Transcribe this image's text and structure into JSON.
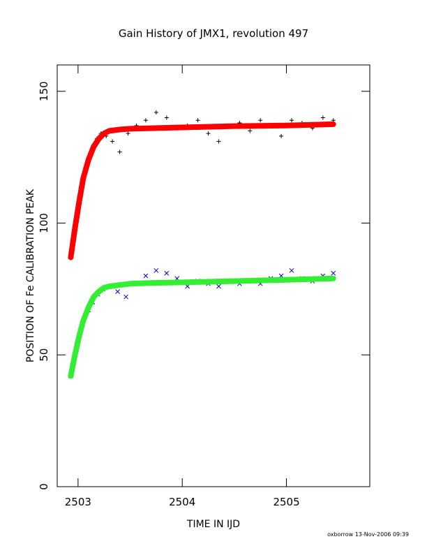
{
  "chart_data": {
    "type": "scatter",
    "title": "Gain History of JMX1, revolution 497",
    "xlabel": "TIME IN IJD",
    "ylabel": "POSITION OF Fe CALIBRATION PEAK",
    "xlim": [
      2502.8,
      2505.8
    ],
    "ylim": [
      0,
      160
    ],
    "xticks": [
      2503,
      2504,
      2505
    ],
    "yticks": [
      0,
      50,
      100,
      150
    ],
    "footer": "oxborrow 13-Nov-2006 09:39",
    "grid": false,
    "series": [
      {
        "marker": "plus",
        "color": "#000000",
        "x": [
          2502.93,
          2502.95,
          2502.97,
          2502.99,
          2503.01,
          2503.04,
          2503.07,
          2503.1,
          2503.14,
          2503.18,
          2503.22,
          2503.27,
          2503.33,
          2503.4,
          2503.48,
          2503.56,
          2503.65,
          2503.75,
          2503.85,
          2503.95,
          2504.05,
          2504.15,
          2504.25,
          2504.35,
          2504.45,
          2504.55,
          2504.65,
          2504.75,
          2504.85,
          2504.95,
          2505.05,
          2505.15,
          2505.25,
          2505.35,
          2505.45
        ],
        "y": [
          87,
          92,
          98,
          104,
          110,
          116,
          121,
          125,
          129,
          132,
          134,
          133,
          131,
          127,
          134,
          137,
          139,
          142,
          140,
          136,
          137,
          139,
          134,
          131,
          137,
          138,
          135,
          139,
          137,
          133,
          139,
          138,
          136,
          140,
          139
        ]
      },
      {
        "name": "fit",
        "style": "line",
        "color": "#ff0000",
        "x": [
          2502.93,
          2502.97,
          2503.01,
          2503.05,
          2503.1,
          2503.15,
          2503.2,
          2503.25,
          2503.3,
          2503.4,
          2503.5,
          2503.7,
          2504.0,
          2504.5,
          2505.0,
          2505.45
        ],
        "y": [
          87,
          98,
          108,
          117,
          124,
          129,
          132,
          134,
          135,
          135.5,
          135.8,
          136,
          136.3,
          136.8,
          137,
          137.5
        ]
      },
      {
        "marker": "cross",
        "color": "#0000cc",
        "x": [
          2502.93,
          2502.96,
          2502.99,
          2503.02,
          2503.06,
          2503.1,
          2503.14,
          2503.19,
          2503.24,
          2503.3,
          2503.38,
          2503.46,
          2503.55,
          2503.65,
          2503.75,
          2503.85,
          2503.95,
          2504.05,
          2504.15,
          2504.25,
          2504.35,
          2504.45,
          2504.55,
          2504.65,
          2504.75,
          2504.85,
          2504.95,
          2505.05,
          2505.15,
          2505.25,
          2505.35,
          2505.45
        ],
        "y": [
          42,
          48,
          54,
          59,
          64,
          67,
          70,
          73,
          75,
          76,
          74,
          72,
          77,
          80,
          82,
          81,
          79,
          76,
          78,
          77,
          76,
          78,
          77,
          78,
          77,
          79,
          80,
          82,
          79,
          78,
          80,
          81
        ]
      },
      {
        "name": "fit",
        "style": "line",
        "color": "#33ee33",
        "x": [
          2502.93,
          2502.97,
          2503.01,
          2503.05,
          2503.1,
          2503.15,
          2503.2,
          2503.25,
          2503.3,
          2503.4,
          2503.5,
          2503.7,
          2504.0,
          2504.5,
          2505.0,
          2505.45
        ],
        "y": [
          42,
          50,
          57,
          63,
          68,
          72,
          74,
          75.5,
          76,
          76.5,
          77,
          77.3,
          77.5,
          78,
          78.5,
          79
        ]
      }
    ]
  }
}
